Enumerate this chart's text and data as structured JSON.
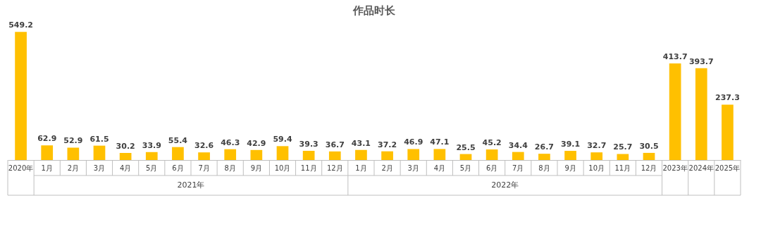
{
  "chart_data": {
    "type": "bar",
    "title": "作品时长",
    "categories": [
      "2020年",
      "1月",
      "2月",
      "3月",
      "4月",
      "5月",
      "6月",
      "7月",
      "8月",
      "9月",
      "10月",
      "11月",
      "12月",
      "1月",
      "2月",
      "3月",
      "4月",
      "5月",
      "6月",
      "7月",
      "8月",
      "9月",
      "10月",
      "11月",
      "12月",
      "2023年",
      "2024年",
      "2025年"
    ],
    "values": [
      549.2,
      62.9,
      52.9,
      61.5,
      30.2,
      33.9,
      55.4,
      32.6,
      46.3,
      42.9,
      59.4,
      39.3,
      36.7,
      43.1,
      37.2,
      46.9,
      47.1,
      25.5,
      45.2,
      34.4,
      26.7,
      39.1,
      32.7,
      25.7,
      30.5,
      413.7,
      393.7,
      237.3
    ],
    "color": "#ffc000",
    "data_labels": true,
    "grid": false,
    "annotations": [
      "2021年",
      "2022年"
    ]
  }
}
